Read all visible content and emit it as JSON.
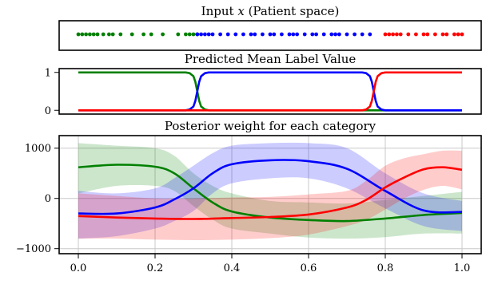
{
  "colors": {
    "green": "#008000",
    "blue": "#0000ff",
    "red": "#ff0000"
  },
  "chart_data": [
    {
      "type": "scatter",
      "title": "Input x (Patient space)",
      "title_parts": {
        "prefix": "Input ",
        "var": "x",
        "suffix": " (Patient space)"
      },
      "xlim": [
        0,
        1
      ],
      "grid": false,
      "series": [
        {
          "color": "green",
          "x": [
            0.0,
            0.01,
            0.02,
            0.03,
            0.04,
            0.05,
            0.065,
            0.08,
            0.09,
            0.11,
            0.14,
            0.17,
            0.19,
            0.22,
            0.26,
            0.28,
            0.29,
            0.3,
            0.31
          ]
        },
        {
          "color": "blue",
          "x": [
            0.31,
            0.32,
            0.33,
            0.34,
            0.35,
            0.37,
            0.39,
            0.41,
            0.43,
            0.45,
            0.46,
            0.48,
            0.5,
            0.51,
            0.53,
            0.55,
            0.56,
            0.57,
            0.59,
            0.61,
            0.62,
            0.64,
            0.66,
            0.67,
            0.68,
            0.7,
            0.72,
            0.74,
            0.76
          ]
        },
        {
          "color": "red",
          "x": [
            0.8,
            0.81,
            0.82,
            0.83,
            0.84,
            0.86,
            0.88,
            0.9,
            0.91,
            0.93,
            0.95,
            0.96,
            0.98,
            0.99,
            1.0
          ]
        }
      ]
    },
    {
      "type": "line",
      "title": "Predicted Mean Label Value",
      "xlim": [
        0,
        1
      ],
      "ylim": [
        -0.1,
        1.1
      ],
      "yticks": [
        "1",
        "0"
      ],
      "ytick_values": [
        1,
        0
      ],
      "grid": false,
      "series": [
        {
          "color": "green",
          "x": [
            0,
            0.28,
            0.29,
            0.3,
            0.305,
            0.31,
            0.315,
            0.32,
            0.33,
            0.34,
            1
          ],
          "values": [
            1,
            1,
            0.98,
            0.9,
            0.75,
            0.5,
            0.25,
            0.1,
            0.02,
            0,
            0
          ]
        },
        {
          "color": "blue",
          "x": [
            0,
            0.28,
            0.29,
            0.3,
            0.305,
            0.31,
            0.315,
            0.32,
            0.33,
            0.34,
            0.74,
            0.75,
            0.76,
            0.765,
            0.77,
            0.775,
            0.78,
            0.79,
            0.8,
            1
          ],
          "values": [
            0,
            0,
            0.02,
            0.1,
            0.25,
            0.5,
            0.75,
            0.9,
            0.98,
            1,
            1,
            0.98,
            0.9,
            0.75,
            0.5,
            0.25,
            0.1,
            0.02,
            0,
            0
          ]
        },
        {
          "color": "red",
          "x": [
            0,
            0.74,
            0.75,
            0.76,
            0.765,
            0.77,
            0.775,
            0.78,
            0.79,
            0.8,
            1
          ],
          "values": [
            0,
            0,
            0.02,
            0.1,
            0.25,
            0.5,
            0.75,
            0.9,
            0.98,
            1,
            1
          ]
        }
      ]
    },
    {
      "type": "area",
      "title": "Posterior weight for each category",
      "xlim": [
        -0.05,
        1.05
      ],
      "ylim": [
        -1100,
        1250
      ],
      "xticks": [
        "0.0",
        "0.2",
        "0.4",
        "0.6",
        "0.8",
        "1.0"
      ],
      "xtick_values": [
        0,
        0.2,
        0.4,
        0.6,
        0.8,
        1.0
      ],
      "yticks": [
        "1000",
        "0",
        "−1000"
      ],
      "ytick_values": [
        1000,
        0,
        -1000
      ],
      "grid": true,
      "series": [
        {
          "color": "green",
          "x": [
            0,
            0.1,
            0.2,
            0.25,
            0.3,
            0.35,
            0.4,
            0.5,
            0.6,
            0.7,
            0.8,
            0.9,
            1.0
          ],
          "values": [
            620,
            670,
            630,
            500,
            200,
            -80,
            -260,
            -380,
            -430,
            -450,
            -400,
            -330,
            -290
          ],
          "upper": [
            1100,
            1050,
            1000,
            850,
            500,
            250,
            100,
            -50,
            -80,
            -100,
            -30,
            50,
            130
          ],
          "lower": [
            100,
            250,
            250,
            150,
            -150,
            -420,
            -600,
            -700,
            -780,
            -800,
            -770,
            -700,
            -700
          ]
        },
        {
          "color": "blue",
          "x": [
            0,
            0.1,
            0.2,
            0.25,
            0.3,
            0.35,
            0.4,
            0.5,
            0.6,
            0.7,
            0.8,
            0.9,
            1.0
          ],
          "values": [
            -300,
            -300,
            -180,
            -20,
            200,
            500,
            680,
            760,
            740,
            590,
            150,
            -240,
            -270
          ],
          "upper": [
            150,
            100,
            200,
            400,
            650,
            900,
            1050,
            1100,
            1100,
            1000,
            500,
            100,
            -50
          ],
          "lower": [
            -800,
            -750,
            -600,
            -450,
            -250,
            100,
            300,
            400,
            400,
            200,
            -200,
            -550,
            -650
          ]
        },
        {
          "color": "red",
          "x": [
            0,
            0.1,
            0.2,
            0.3,
            0.4,
            0.5,
            0.6,
            0.7,
            0.75,
            0.8,
            0.85,
            0.9,
            0.95,
            1.0
          ],
          "values": [
            -350,
            -380,
            -400,
            -410,
            -390,
            -370,
            -320,
            -180,
            -30,
            220,
            420,
            580,
            620,
            570
          ],
          "upper": [
            100,
            50,
            0,
            0,
            20,
            30,
            80,
            150,
            350,
            650,
            800,
            880,
            950,
            950
          ],
          "lower": [
            -800,
            -800,
            -820,
            -830,
            -820,
            -790,
            -720,
            -550,
            -430,
            -220,
            0,
            170,
            250,
            180
          ]
        }
      ]
    }
  ]
}
